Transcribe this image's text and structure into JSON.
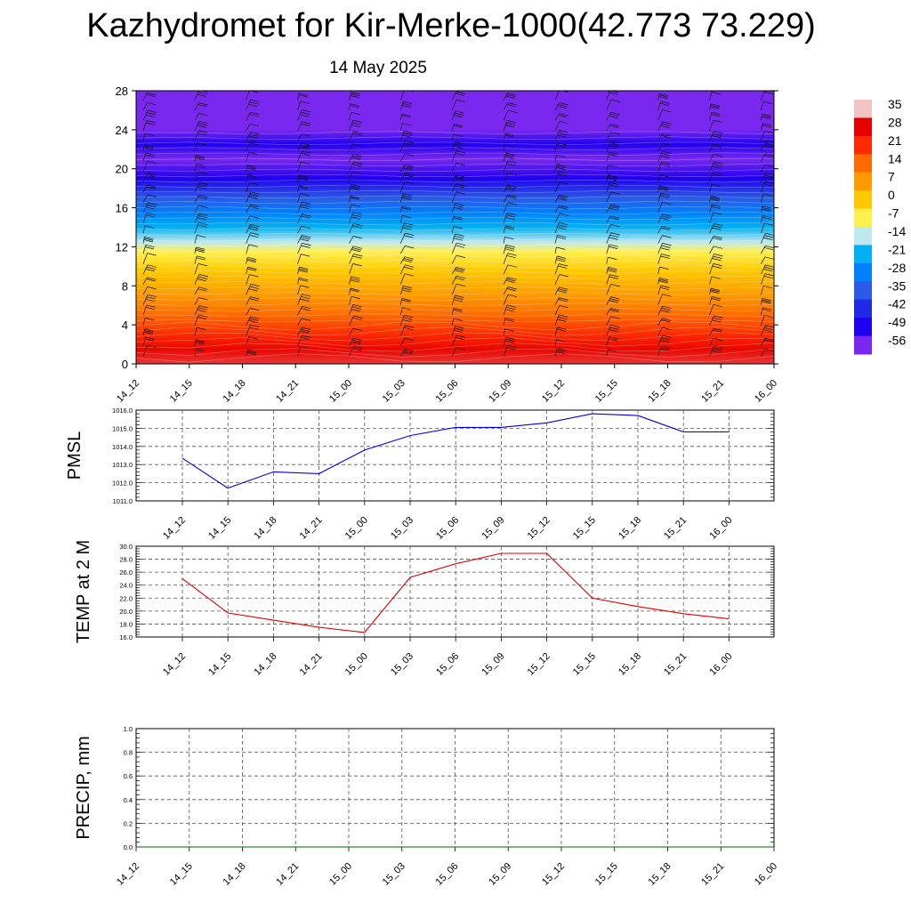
{
  "header": {
    "title": "Kazhydromet for Kir-Merke-1000(42.773 73.229)",
    "subtitle": "14 May 2025"
  },
  "time_labels": [
    "14_12",
    "14_15",
    "14_18",
    "14_21",
    "15_00",
    "15_03",
    "15_06",
    "15_09",
    "15_12",
    "15_15",
    "15_18",
    "15_21",
    "16_00"
  ],
  "colors": {
    "pmsl_line": "#0000dd",
    "temp_line": "#dd0000",
    "precip_line": "#006400",
    "grid": "#555555"
  },
  "chart_data": [
    {
      "id": "cross-section",
      "type": "heatmap",
      "xlabel": "",
      "ylabel": "",
      "x": [
        "14_12",
        "14_15",
        "14_18",
        "14_21",
        "15_00",
        "15_03",
        "15_06",
        "15_09",
        "15_12",
        "15_15",
        "15_18",
        "15_21",
        "16_00"
      ],
      "yticks": [
        0,
        4,
        8,
        12,
        16,
        20,
        24,
        28
      ],
      "ylim": [
        0,
        28
      ],
      "colorbar": {
        "labels": [
          "35",
          "28",
          "21",
          "14",
          "7",
          "0",
          "-7",
          "-14",
          "-21",
          "-28",
          "-35",
          "-42",
          "-49",
          "-56"
        ],
        "colors": [
          "#f2c4c4",
          "#e60000",
          "#ff2a00",
          "#ff6a00",
          "#ff9a00",
          "#ffc800",
          "#fff050",
          "#bfe8f0",
          "#00b0f0",
          "#0080ff",
          "#2a5ae6",
          "#1e2ae6",
          "#2000f0",
          "#7a28f0"
        ]
      },
      "temperature_by_height": [
        {
          "height": 0,
          "value": 30
        },
        {
          "height": 1.5,
          "value": 27
        },
        {
          "height": 3,
          "value": 21
        },
        {
          "height": 5,
          "value": 14
        },
        {
          "height": 7,
          "value": 7
        },
        {
          "height": 9.5,
          "value": 0
        },
        {
          "height": 11.5,
          "value": -7
        },
        {
          "height": 12.5,
          "value": -14
        },
        {
          "height": 14,
          "value": -21
        },
        {
          "height": 15.5,
          "value": -28
        },
        {
          "height": 17,
          "value": -35
        },
        {
          "height": 19,
          "value": -49
        },
        {
          "height": 21,
          "value": -56
        },
        {
          "height": 22.5,
          "value": -49
        },
        {
          "height": 24,
          "value": -56
        },
        {
          "height": 28,
          "value": -56
        }
      ]
    },
    {
      "id": "pmsl",
      "type": "line",
      "ylabel": "PMSL",
      "x": [
        "14_12",
        "14_15",
        "14_18",
        "14_21",
        "15_00",
        "15_03",
        "15_06",
        "15_09",
        "15_12",
        "15_15",
        "15_18",
        "15_21",
        "16_00"
      ],
      "ylim": [
        1011.0,
        1016.0
      ],
      "yticks": [
        "1011.0",
        "1012.0",
        "1013.0",
        "1014.0",
        "1015.0",
        "1016.0"
      ],
      "series": [
        {
          "values": [
            1013.35,
            1011.7,
            1012.6,
            1012.5,
            1013.8,
            1014.6,
            1015.05,
            1015.05,
            1015.3,
            1015.8,
            1015.7,
            1014.8,
            1014.8
          ]
        }
      ]
    },
    {
      "id": "temp",
      "type": "line",
      "ylabel": "TEMP at 2 M",
      "x": [
        "14_12",
        "14_15",
        "14_18",
        "14_21",
        "15_00",
        "15_03",
        "15_06",
        "15_09",
        "15_12",
        "15_15",
        "15_18",
        "15_21",
        "16_00"
      ],
      "ylim": [
        16.0,
        30.0
      ],
      "yticks": [
        "16.0",
        "18.0",
        "20.0",
        "22.0",
        "24.0",
        "26.0",
        "28.0",
        "30.0"
      ],
      "series": [
        {
          "values": [
            25.0,
            19.7,
            18.6,
            17.5,
            16.7,
            25.2,
            27.3,
            28.9,
            28.9,
            22.0,
            20.7,
            19.6,
            18.8
          ]
        }
      ]
    },
    {
      "id": "precip",
      "type": "line",
      "ylabel": "PRECIP, mm",
      "x": [
        "14_12",
        "14_15",
        "14_18",
        "14_21",
        "15_00",
        "15_03",
        "15_06",
        "15_09",
        "15_12",
        "15_15",
        "15_18",
        "15_21",
        "16_00"
      ],
      "ylim": [
        0.0,
        1.0
      ],
      "yticks": [
        "0.0",
        "0.2",
        "0.4",
        "0.6",
        "0.8",
        "1.0"
      ],
      "series": [
        {
          "values": [
            0,
            0,
            0,
            0,
            0,
            0,
            0,
            0,
            0,
            0,
            0,
            0,
            0
          ]
        }
      ]
    }
  ]
}
